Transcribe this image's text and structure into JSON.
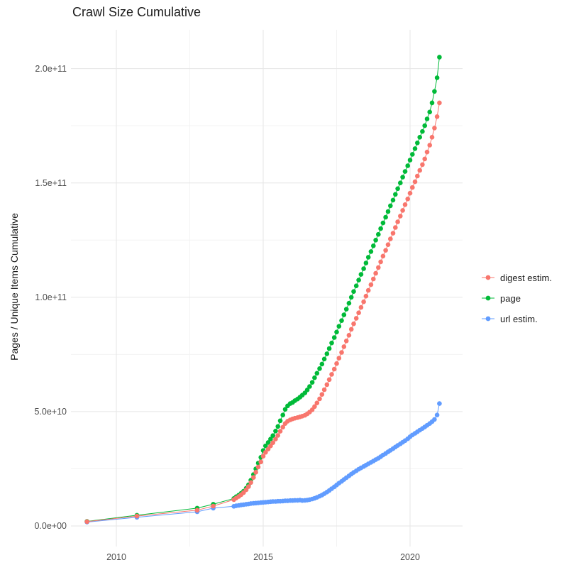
{
  "chart_data": {
    "type": "scatter",
    "title": "Crawl Size Cumulative",
    "xlabel": "",
    "ylabel": "Pages / Unique Items Cumulative",
    "legend_position": "right",
    "grid": true,
    "y_unit": "values are in units of 1e9 (plot labels use scientific notation)",
    "xlim": [
      2008.4,
      2021.8
    ],
    "ylim_e9": [
      -8,
      218
    ],
    "x_ticks": {
      "values": [
        2010,
        2015,
        2020
      ],
      "labels": [
        "2010",
        "2015",
        "2020"
      ]
    },
    "y_ticks": {
      "values_e9": [
        0,
        50,
        100,
        150,
        200
      ],
      "labels": [
        "0.0e+00",
        "5.0e+10",
        "1.0e+11",
        "1.5e+11",
        "2.0e+11"
      ]
    },
    "x_minor": [
      2012.5,
      2017.5
    ],
    "y_minor_e9": [
      25,
      75,
      125,
      175
    ],
    "style": {
      "background": "#ffffff",
      "grid_major": "#e6e6e6",
      "grid_minor": "#f3f3f3",
      "tick_text": "#4d4d4d",
      "title_text": "#1a1a1a",
      "point_radius": 3.3,
      "line_width": 1
    },
    "series": [
      {
        "name": "digest estim.",
        "color": "#F8766D",
        "points": [
          [
            2009.0,
            1.9
          ],
          [
            2010.7,
            4.3
          ],
          [
            2012.75,
            6.9
          ],
          [
            2013.3,
            8.7
          ],
          [
            2014.0,
            11.5
          ],
          [
            2014.08,
            12.2
          ],
          [
            2014.17,
            12.9
          ],
          [
            2014.25,
            13.7
          ],
          [
            2014.33,
            14.6
          ],
          [
            2014.42,
            15.8
          ],
          [
            2014.5,
            17.2
          ],
          [
            2014.58,
            19.0
          ],
          [
            2014.67,
            21.2
          ],
          [
            2014.75,
            23.5
          ],
          [
            2014.83,
            25.8
          ],
          [
            2014.92,
            28.0
          ],
          [
            2015.0,
            30.5
          ],
          [
            2015.08,
            32.2
          ],
          [
            2015.17,
            33.6
          ],
          [
            2015.25,
            35.0
          ],
          [
            2015.33,
            36.4
          ],
          [
            2015.42,
            38.0
          ],
          [
            2015.5,
            39.6
          ],
          [
            2015.58,
            41.4
          ],
          [
            2015.67,
            43.2
          ],
          [
            2015.75,
            44.8
          ],
          [
            2015.83,
            45.8
          ],
          [
            2015.92,
            46.4
          ],
          [
            2016.0,
            46.8
          ],
          [
            2016.08,
            47.1
          ],
          [
            2016.17,
            47.4
          ],
          [
            2016.25,
            47.7
          ],
          [
            2016.33,
            48.0
          ],
          [
            2016.42,
            48.4
          ],
          [
            2016.5,
            49.0
          ],
          [
            2016.58,
            49.8
          ],
          [
            2016.67,
            50.8
          ],
          [
            2016.75,
            52.2
          ],
          [
            2016.83,
            53.8
          ],
          [
            2016.92,
            55.6
          ],
          [
            2017.0,
            57.5
          ],
          [
            2017.08,
            59.6
          ],
          [
            2017.17,
            61.8
          ],
          [
            2017.25,
            64.0
          ],
          [
            2017.33,
            66.3
          ],
          [
            2017.42,
            68.6
          ],
          [
            2017.5,
            71.0
          ],
          [
            2017.58,
            73.4
          ],
          [
            2017.67,
            75.9
          ],
          [
            2017.75,
            78.4
          ],
          [
            2017.83,
            80.9
          ],
          [
            2017.92,
            83.4
          ],
          [
            2018.0,
            86.0
          ],
          [
            2018.08,
            88.4
          ],
          [
            2018.17,
            90.8
          ],
          [
            2018.25,
            93.2
          ],
          [
            2018.33,
            95.6
          ],
          [
            2018.42,
            98.0
          ],
          [
            2018.5,
            100.5
          ],
          [
            2018.58,
            103.0
          ],
          [
            2018.67,
            105.5
          ],
          [
            2018.75,
            108.0
          ],
          [
            2018.83,
            110.5
          ],
          [
            2018.92,
            113.0
          ],
          [
            2019.0,
            115.5
          ],
          [
            2019.08,
            118.0
          ],
          [
            2019.17,
            120.5
          ],
          [
            2019.25,
            123.0
          ],
          [
            2019.33,
            125.5
          ],
          [
            2019.42,
            128.0
          ],
          [
            2019.5,
            130.5
          ],
          [
            2019.58,
            133.0
          ],
          [
            2019.67,
            135.5
          ],
          [
            2019.75,
            138.0
          ],
          [
            2019.83,
            140.5
          ],
          [
            2019.92,
            143.0
          ],
          [
            2020.0,
            145.5
          ],
          [
            2020.08,
            148.0
          ],
          [
            2020.17,
            150.5
          ],
          [
            2020.25,
            153.0
          ],
          [
            2020.33,
            155.5
          ],
          [
            2020.42,
            158.0
          ],
          [
            2020.5,
            160.5
          ],
          [
            2020.58,
            163.5
          ],
          [
            2020.67,
            166.5
          ],
          [
            2020.75,
            170.0
          ],
          [
            2020.83,
            174.0
          ],
          [
            2020.92,
            179.0
          ],
          [
            2021.0,
            185.0
          ]
        ]
      },
      {
        "name": "page",
        "color": "#00BA38",
        "points": [
          [
            2009.0,
            2.0
          ],
          [
            2010.7,
            4.7
          ],
          [
            2012.75,
            7.8
          ],
          [
            2013.3,
            9.5
          ],
          [
            2014.0,
            12.0
          ],
          [
            2014.08,
            12.8
          ],
          [
            2014.17,
            13.5
          ],
          [
            2014.25,
            14.3
          ],
          [
            2014.33,
            15.2
          ],
          [
            2014.42,
            16.5
          ],
          [
            2014.5,
            18.0
          ],
          [
            2014.58,
            20.0
          ],
          [
            2014.67,
            22.5
          ],
          [
            2014.75,
            25.0
          ],
          [
            2014.83,
            27.5
          ],
          [
            2014.92,
            30.0
          ],
          [
            2015.0,
            33.0
          ],
          [
            2015.08,
            35.0
          ],
          [
            2015.17,
            36.5
          ],
          [
            2015.25,
            38.0
          ],
          [
            2015.33,
            39.5
          ],
          [
            2015.42,
            41.5
          ],
          [
            2015.5,
            43.5
          ],
          [
            2015.58,
            46.0
          ],
          [
            2015.67,
            48.5
          ],
          [
            2015.75,
            51.0
          ],
          [
            2015.83,
            52.5
          ],
          [
            2015.92,
            53.5
          ],
          [
            2016.0,
            54.0
          ],
          [
            2016.08,
            54.8
          ],
          [
            2016.17,
            55.5
          ],
          [
            2016.25,
            56.3
          ],
          [
            2016.33,
            57.2
          ],
          [
            2016.42,
            58.2
          ],
          [
            2016.5,
            59.5
          ],
          [
            2016.58,
            61.0
          ],
          [
            2016.67,
            62.8
          ],
          [
            2016.75,
            64.8
          ],
          [
            2016.83,
            66.8
          ],
          [
            2016.92,
            68.8
          ],
          [
            2017.0,
            70.8
          ],
          [
            2017.08,
            73.0
          ],
          [
            2017.17,
            75.3
          ],
          [
            2017.25,
            77.6
          ],
          [
            2017.33,
            80.0
          ],
          [
            2017.42,
            82.4
          ],
          [
            2017.5,
            84.8
          ],
          [
            2017.58,
            87.3
          ],
          [
            2017.67,
            89.8
          ],
          [
            2017.75,
            92.3
          ],
          [
            2017.83,
            94.8
          ],
          [
            2017.92,
            97.4
          ],
          [
            2018.0,
            100.0
          ],
          [
            2018.08,
            102.5
          ],
          [
            2018.17,
            105.0
          ],
          [
            2018.25,
            107.5
          ],
          [
            2018.33,
            110.0
          ],
          [
            2018.42,
            112.5
          ],
          [
            2018.5,
            115.0
          ],
          [
            2018.58,
            117.5
          ],
          [
            2018.67,
            120.0
          ],
          [
            2018.75,
            122.5
          ],
          [
            2018.83,
            125.0
          ],
          [
            2018.92,
            127.5
          ],
          [
            2019.0,
            130.0
          ],
          [
            2019.08,
            132.5
          ],
          [
            2019.17,
            135.0
          ],
          [
            2019.25,
            137.5
          ],
          [
            2019.33,
            140.0
          ],
          [
            2019.42,
            142.5
          ],
          [
            2019.5,
            145.0
          ],
          [
            2019.58,
            147.5
          ],
          [
            2019.67,
            150.0
          ],
          [
            2019.75,
            152.5
          ],
          [
            2019.83,
            155.0
          ],
          [
            2019.92,
            157.5
          ],
          [
            2020.0,
            160.0
          ],
          [
            2020.08,
            162.5
          ],
          [
            2020.17,
            165.0
          ],
          [
            2020.25,
            167.5
          ],
          [
            2020.33,
            170.0
          ],
          [
            2020.42,
            172.5
          ],
          [
            2020.5,
            175.0
          ],
          [
            2020.58,
            178.0
          ],
          [
            2020.67,
            181.0
          ],
          [
            2020.75,
            185.0
          ],
          [
            2020.83,
            190.0
          ],
          [
            2020.92,
            196.0
          ],
          [
            2021.0,
            205.0
          ]
        ]
      },
      {
        "name": "url estim.",
        "color": "#619CFF",
        "points": [
          [
            2009.0,
            1.7
          ],
          [
            2010.7,
            3.8
          ],
          [
            2012.75,
            6.2
          ],
          [
            2013.3,
            7.8
          ],
          [
            2014.0,
            8.6
          ],
          [
            2014.08,
            8.8
          ],
          [
            2014.17,
            9.0
          ],
          [
            2014.25,
            9.2
          ],
          [
            2014.33,
            9.3
          ],
          [
            2014.42,
            9.5
          ],
          [
            2014.5,
            9.6
          ],
          [
            2014.58,
            9.8
          ],
          [
            2014.67,
            9.9
          ],
          [
            2014.75,
            10.0
          ],
          [
            2014.83,
            10.1
          ],
          [
            2014.92,
            10.2
          ],
          [
            2015.0,
            10.3
          ],
          [
            2015.08,
            10.4
          ],
          [
            2015.17,
            10.5
          ],
          [
            2015.25,
            10.6
          ],
          [
            2015.33,
            10.7
          ],
          [
            2015.42,
            10.7
          ],
          [
            2015.5,
            10.8
          ],
          [
            2015.58,
            10.8
          ],
          [
            2015.67,
            10.9
          ],
          [
            2015.75,
            11.0
          ],
          [
            2015.83,
            11.0
          ],
          [
            2015.92,
            11.1
          ],
          [
            2016.0,
            11.1
          ],
          [
            2016.08,
            11.2
          ],
          [
            2016.17,
            11.2
          ],
          [
            2016.25,
            11.3
          ],
          [
            2016.33,
            11.1
          ],
          [
            2016.42,
            11.2
          ],
          [
            2016.5,
            11.3
          ],
          [
            2016.58,
            11.5
          ],
          [
            2016.67,
            11.8
          ],
          [
            2016.75,
            12.1
          ],
          [
            2016.83,
            12.5
          ],
          [
            2016.92,
            13.0
          ],
          [
            2017.0,
            13.5
          ],
          [
            2017.08,
            14.1
          ],
          [
            2017.17,
            14.8
          ],
          [
            2017.25,
            15.5
          ],
          [
            2017.33,
            16.3
          ],
          [
            2017.42,
            17.1
          ],
          [
            2017.5,
            17.9
          ],
          [
            2017.58,
            18.7
          ],
          [
            2017.67,
            19.5
          ],
          [
            2017.75,
            20.3
          ],
          [
            2017.83,
            21.1
          ],
          [
            2017.92,
            21.9
          ],
          [
            2018.0,
            22.7
          ],
          [
            2018.08,
            23.4
          ],
          [
            2018.17,
            24.1
          ],
          [
            2018.25,
            24.8
          ],
          [
            2018.33,
            25.4
          ],
          [
            2018.42,
            26.0
          ],
          [
            2018.5,
            26.6
          ],
          [
            2018.58,
            27.2
          ],
          [
            2018.67,
            27.8
          ],
          [
            2018.75,
            28.4
          ],
          [
            2018.83,
            29.0
          ],
          [
            2018.92,
            29.6
          ],
          [
            2019.0,
            30.3
          ],
          [
            2019.08,
            31.0
          ],
          [
            2019.17,
            31.7
          ],
          [
            2019.25,
            32.4
          ],
          [
            2019.33,
            33.1
          ],
          [
            2019.42,
            33.8
          ],
          [
            2019.5,
            34.5
          ],
          [
            2019.58,
            35.2
          ],
          [
            2019.67,
            35.9
          ],
          [
            2019.75,
            36.6
          ],
          [
            2019.83,
            37.3
          ],
          [
            2019.92,
            38.1
          ],
          [
            2020.0,
            39.0
          ],
          [
            2020.08,
            39.8
          ],
          [
            2020.17,
            40.5
          ],
          [
            2020.25,
            41.2
          ],
          [
            2020.33,
            41.9
          ],
          [
            2020.42,
            42.6
          ],
          [
            2020.5,
            43.3
          ],
          [
            2020.58,
            44.0
          ],
          [
            2020.67,
            44.8
          ],
          [
            2020.75,
            45.6
          ],
          [
            2020.83,
            46.6
          ],
          [
            2020.92,
            48.5
          ],
          [
            2021.0,
            53.5
          ]
        ]
      }
    ]
  }
}
